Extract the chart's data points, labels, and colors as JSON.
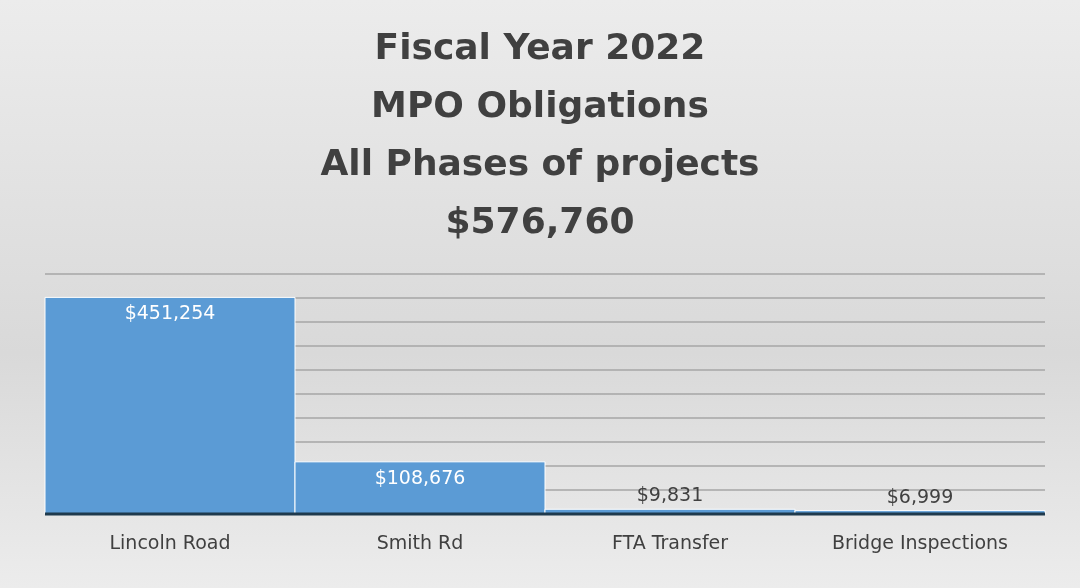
{
  "chart_data": {
    "type": "bar",
    "title": "Fiscal Year 2022\nMPO Obligations\nAll Phases of projects",
    "subtitle": "$576,760",
    "categories": [
      "Lincoln Road",
      "Smith Rd",
      "FTA Transfer",
      "Bridge Inspections"
    ],
    "values": [
      451254,
      108676,
      9831,
      6999
    ],
    "value_labels": [
      "$451,254",
      "$108,676",
      "$9,831",
      "$6,999"
    ],
    "color": "#5b9bd5",
    "ylim": [
      0,
      500000
    ],
    "yticks": [
      0,
      50000,
      100000,
      150000,
      200000,
      250000,
      300000,
      350000,
      400000,
      450000,
      500000
    ],
    "tick_labels": "x",
    "grid": "y"
  }
}
